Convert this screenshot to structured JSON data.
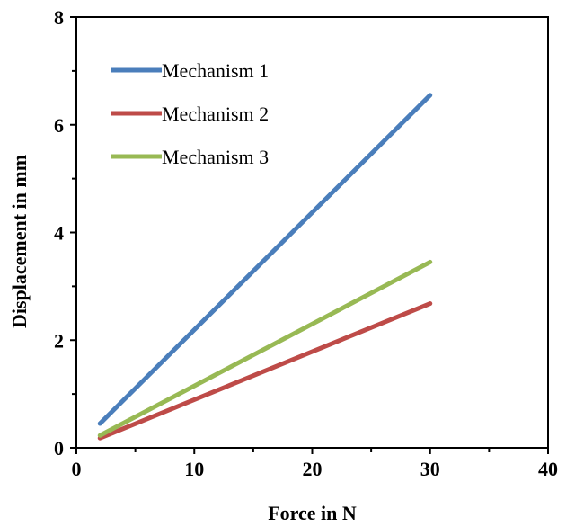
{
  "chart_data": {
    "type": "line",
    "title": "",
    "xlabel": "Force in N",
    "ylabel": "Displacement in mm",
    "xlim": [
      0,
      40
    ],
    "ylim": [
      0,
      8
    ],
    "xticks": [
      0,
      10,
      20,
      30,
      40
    ],
    "yticks": [
      0,
      2,
      4,
      6,
      8
    ],
    "grid": false,
    "legend_position": "top-left",
    "series": [
      {
        "name": "Mechanism 1",
        "color": "#4a7ebb",
        "x": [
          2,
          30
        ],
        "y": [
          0.45,
          6.55
        ]
      },
      {
        "name": "Mechanism 2",
        "color": "#be4b48",
        "x": [
          2,
          30
        ],
        "y": [
          0.18,
          2.68
        ]
      },
      {
        "name": "Mechanism 3",
        "color": "#98b954",
        "x": [
          2,
          30
        ],
        "y": [
          0.23,
          3.45
        ]
      }
    ]
  }
}
